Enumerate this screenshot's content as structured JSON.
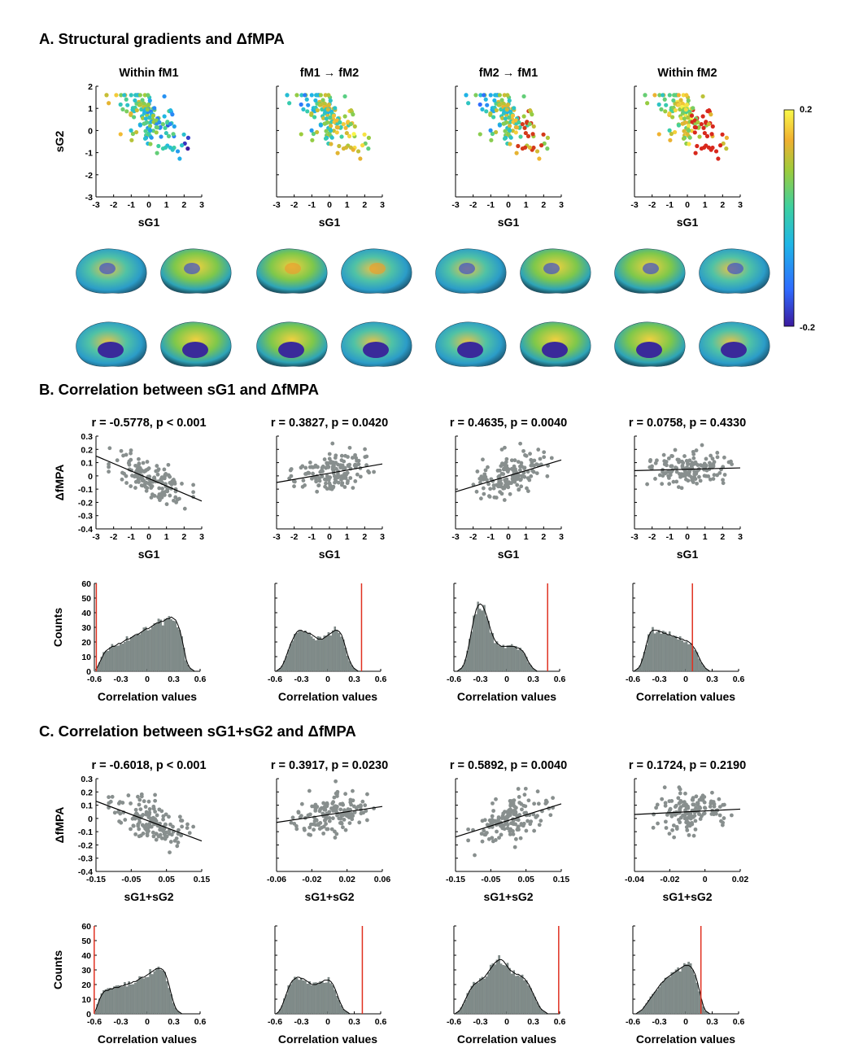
{
  "sections": {
    "A": "A. Structural gradients and ΔfMPA",
    "B": "B. Correlation between sG1 and ΔfMPA",
    "C": "C. Correlation between sG1+sG2 and ΔfMPA"
  },
  "colorbar": {
    "max": "0.2",
    "min": "-0.2",
    "colors": [
      "#3b1a9e",
      "#2f6bff",
      "#1fb6e6",
      "#3dd0a0",
      "#9ccc3c",
      "#f0b030",
      "#f9f94a"
    ]
  },
  "shared": {
    "xlabel_scatter_B": "sG1",
    "xlabel_scatter_C": "sG1+sG2",
    "ylabel_scatter": "ΔfMPA",
    "xlabel_hist": "Correlation values",
    "ylabel_hist": "Counts",
    "point_color": "#888f8e",
    "bar_color": "#808c8a",
    "null_line_color": "#e03020"
  },
  "chart_data": [
    {
      "id": "A1",
      "type": "scatter",
      "title": "Within fM1",
      "xlabel": "sG1",
      "ylabel": "sG2",
      "xlim": [
        -3,
        3
      ],
      "ylim": [
        -3,
        2
      ],
      "xticks": [
        "-3",
        "-2",
        "-1",
        "0",
        "1",
        "2",
        "3"
      ],
      "yticks": [
        "-3",
        "-2",
        "-1",
        "0",
        "1",
        "2"
      ],
      "color_mode": "mixed_blue_right"
    },
    {
      "id": "A2",
      "type": "scatter",
      "title": "fM1 → fM2",
      "xlabel": "sG1",
      "xlim": [
        -3,
        3
      ],
      "ylim": [
        -3,
        2
      ],
      "xticks": [
        "-3",
        "-2",
        "-1",
        "0",
        "1",
        "2",
        "3"
      ],
      "color_mode": "warm_right"
    },
    {
      "id": "A3",
      "type": "scatter",
      "title": "fM2 → fM1",
      "xlabel": "sG1",
      "xlim": [
        -3,
        3
      ],
      "ylim": [
        -3,
        2
      ],
      "xticks": [
        "-3",
        "-2",
        "-1",
        "0",
        "1",
        "2",
        "3"
      ],
      "color_mode": "warm_right_strong"
    },
    {
      "id": "A4",
      "type": "scatter",
      "title": "Within fM2",
      "xlabel": "sG1",
      "xlim": [
        -3,
        3
      ],
      "ylim": [
        -3,
        2
      ],
      "xticks": [
        "-3",
        "-2",
        "-1",
        "0",
        "1",
        "2",
        "3"
      ],
      "color_mode": "red_hot"
    },
    {
      "id": "B1",
      "type": "scatter",
      "title": "r = -0.5778, p < 0.001",
      "xlabel": "sG1",
      "ylabel": "ΔfMPA",
      "xlim": [
        -3,
        3
      ],
      "ylim": [
        -0.4,
        0.3
      ],
      "xticks": [
        "-3",
        "-2",
        "-1",
        "0",
        "1",
        "2",
        "3"
      ],
      "yticks": [
        "-0.4",
        "-0.3",
        "-0.2",
        "-0.1",
        "0",
        "0.1",
        "0.2",
        "0.3"
      ],
      "fit": [
        [
          -3,
          0.15
        ],
        [
          3,
          -0.19
        ]
      ]
    },
    {
      "id": "B2",
      "type": "scatter",
      "title": "r = 0.3827, p = 0.0420",
      "xlabel": "sG1",
      "xlim": [
        -3,
        3
      ],
      "ylim": [
        -0.4,
        0.3
      ],
      "xticks": [
        "-3",
        "-2",
        "-1",
        "0",
        "1",
        "2",
        "3"
      ],
      "fit": [
        [
          -3,
          -0.05
        ],
        [
          3,
          0.09
        ]
      ]
    },
    {
      "id": "B3",
      "type": "scatter",
      "title": "r = 0.4635, p = 0.0040",
      "xlabel": "sG1",
      "xlim": [
        -3,
        3
      ],
      "ylim": [
        -0.4,
        0.3
      ],
      "xticks": [
        "-3",
        "-2",
        "-1",
        "0",
        "1",
        "2",
        "3"
      ],
      "fit": [
        [
          -3,
          -0.12
        ],
        [
          3,
          0.12
        ]
      ]
    },
    {
      "id": "B4",
      "type": "scatter",
      "title": "r = 0.0758, p = 0.4330",
      "xlabel": "sG1",
      "xlim": [
        -3,
        3
      ],
      "ylim": [
        -0.4,
        0.3
      ],
      "xticks": [
        "-3",
        "-2",
        "-1",
        "0",
        "1",
        "2",
        "3"
      ],
      "fit": [
        [
          -3,
          0.04
        ],
        [
          3,
          0.06
        ]
      ]
    },
    {
      "id": "B5",
      "type": "bar",
      "xlabel": "Correlation values",
      "ylabel": "Counts",
      "xlim": [
        -0.6,
        0.6
      ],
      "ylim": [
        0,
        60
      ],
      "xticks": [
        "-0.6",
        "-0.3",
        "0",
        "0.3",
        "0.6"
      ],
      "yticks": [
        "0",
        "10",
        "20",
        "30",
        "40",
        "50",
        "60"
      ],
      "observed": -0.5778,
      "values": [
        1,
        3,
        6,
        9,
        12,
        14,
        15,
        16,
        17,
        17,
        18,
        19,
        19,
        20,
        21,
        22,
        22,
        23,
        24,
        25,
        25,
        26,
        27,
        28,
        29,
        29,
        30,
        31,
        32,
        33,
        33,
        34,
        34,
        35,
        36,
        36,
        37,
        36,
        35,
        32,
        28,
        22,
        15,
        8,
        4,
        2,
        1,
        0
      ]
    },
    {
      "id": "B6",
      "type": "bar",
      "xlabel": "Correlation values",
      "xlim": [
        -0.6,
        0.6
      ],
      "ylim": [
        0,
        60
      ],
      "xticks": [
        "-0.6",
        "-0.3",
        "0",
        "0.3",
        "0.6"
      ],
      "observed": 0.3827,
      "values": [
        0,
        1,
        2,
        4,
        7,
        11,
        15,
        19,
        22,
        25,
        27,
        28,
        28,
        27,
        27,
        26,
        26,
        25,
        24,
        23,
        22,
        22,
        22,
        23,
        24,
        25,
        26,
        27,
        28,
        28,
        27,
        25,
        21,
        16,
        11,
        7,
        4,
        2,
        1,
        0,
        0,
        0,
        0,
        0,
        0,
        0,
        0,
        0
      ]
    },
    {
      "id": "B7",
      "type": "bar",
      "xlabel": "Correlation values",
      "xlim": [
        -0.6,
        0.6
      ],
      "ylim": [
        0,
        60
      ],
      "xticks": [
        "-0.6",
        "-0.3",
        "0",
        "0.3",
        "0.6"
      ],
      "observed": 0.4635,
      "values": [
        0,
        0,
        1,
        2,
        4,
        8,
        14,
        21,
        29,
        36,
        42,
        45,
        46,
        45,
        42,
        38,
        33,
        28,
        24,
        21,
        19,
        18,
        17,
        17,
        17,
        17,
        17,
        17,
        17,
        16,
        16,
        15,
        14,
        12,
        9,
        6,
        4,
        2,
        1,
        0,
        0,
        0,
        0,
        0,
        0,
        0,
        0,
        0
      ]
    },
    {
      "id": "B8",
      "type": "bar",
      "xlabel": "Correlation values",
      "xlim": [
        -0.6,
        0.6
      ],
      "ylim": [
        0,
        60
      ],
      "xticks": [
        "-0.6",
        "-0.3",
        "0",
        "0.3",
        "0.6"
      ],
      "observed": 0.0758,
      "values": [
        0,
        1,
        2,
        4,
        8,
        13,
        19,
        24,
        27,
        28,
        28,
        28,
        27,
        27,
        26,
        26,
        25,
        25,
        24,
        24,
        23,
        23,
        22,
        22,
        21,
        21,
        20,
        19,
        17,
        15,
        12,
        9,
        6,
        4,
        2,
        1,
        0,
        0,
        0,
        0,
        0,
        0,
        0,
        0,
        0,
        0,
        0,
        0
      ]
    },
    {
      "id": "C1",
      "type": "scatter",
      "title": "r = -0.6018, p < 0.001",
      "xlabel": "sG1+sG2",
      "ylabel": "ΔfMPA",
      "xlim": [
        -0.15,
        0.15
      ],
      "ylim": [
        -0.4,
        0.3
      ],
      "xticks": [
        "-0.15",
        "-0.05",
        "0.05",
        "0.15"
      ],
      "yticks": [
        "-0.4",
        "-0.3",
        "-0.2",
        "-0.1",
        "0",
        "0.1",
        "0.2",
        "0.3"
      ],
      "fit": [
        [
          -0.15,
          0.13
        ],
        [
          0.15,
          -0.17
        ]
      ]
    },
    {
      "id": "C2",
      "type": "scatter",
      "title": "r = 0.3917, p = 0.0230",
      "xlabel": "sG1+sG2",
      "xlim": [
        -0.06,
        0.06
      ],
      "ylim": [
        -0.4,
        0.3
      ],
      "xticks": [
        "-0.06",
        "-0.02",
        "0.02",
        "0.06"
      ],
      "fit": [
        [
          -0.06,
          -0.03
        ],
        [
          0.06,
          0.09
        ]
      ]
    },
    {
      "id": "C3",
      "type": "scatter",
      "title": "r = 0.5892, p = 0.0040",
      "xlabel": "sG1+sG2",
      "xlim": [
        -0.15,
        0.15
      ],
      "ylim": [
        -0.4,
        0.3
      ],
      "xticks": [
        "-0.15",
        "-0.05",
        "0.05",
        "0.15"
      ],
      "fit": [
        [
          -0.15,
          -0.14
        ],
        [
          0.15,
          0.11
        ]
      ]
    },
    {
      "id": "C4",
      "type": "scatter",
      "title": "r = 0.1724, p = 0.2190",
      "xlabel": "sG1+sG2",
      "xlim": [
        -0.04,
        0.02
      ],
      "ylim": [
        -0.4,
        0.3
      ],
      "xticks": [
        "-0.04",
        "-0.02",
        "0",
        "0.02"
      ],
      "fit": [
        [
          -0.04,
          0.03
        ],
        [
          0.02,
          0.07
        ]
      ]
    },
    {
      "id": "C5",
      "type": "bar",
      "xlabel": "Correlation values",
      "ylabel": "Counts",
      "xlim": [
        -0.6,
        0.6
      ],
      "ylim": [
        0,
        60
      ],
      "xticks": [
        "-0.6",
        "-0.3",
        "0",
        "0.3",
        "0.6"
      ],
      "yticks": [
        "0",
        "10",
        "20",
        "30",
        "40",
        "50",
        "60"
      ],
      "observed": -0.6018,
      "values": [
        2,
        6,
        10,
        13,
        15,
        16,
        16,
        17,
        17,
        18,
        18,
        18,
        19,
        19,
        20,
        20,
        21,
        21,
        22,
        22,
        23,
        24,
        25,
        25,
        26,
        27,
        28,
        29,
        30,
        31,
        31,
        31,
        30,
        28,
        24,
        19,
        13,
        8,
        4,
        2,
        1,
        0,
        0,
        0,
        0,
        0,
        0,
        0
      ]
    },
    {
      "id": "C6",
      "type": "bar",
      "xlabel": "Correlation values",
      "xlim": [
        -0.6,
        0.6
      ],
      "ylim": [
        0,
        60
      ],
      "xticks": [
        "-0.6",
        "-0.3",
        "0",
        "0.3",
        "0.6"
      ],
      "observed": 0.3917,
      "values": [
        0,
        1,
        3,
        6,
        10,
        14,
        18,
        21,
        23,
        24,
        25,
        25,
        24,
        24,
        23,
        22,
        21,
        20,
        20,
        20,
        21,
        21,
        22,
        23,
        23,
        23,
        22,
        20,
        17,
        13,
        9,
        6,
        3,
        2,
        1,
        0,
        0,
        0,
        0,
        0,
        0,
        0,
        0,
        0,
        0,
        0,
        0,
        0
      ]
    },
    {
      "id": "C7",
      "type": "bar",
      "xlabel": "Correlation values",
      "xlim": [
        -0.6,
        0.6
      ],
      "ylim": [
        0,
        60
      ],
      "xticks": [
        "-0.6",
        "-0.3",
        "0",
        "0.3",
        "0.6"
      ],
      "observed": 0.5892,
      "values": [
        0,
        1,
        2,
        4,
        7,
        10,
        13,
        16,
        18,
        20,
        21,
        22,
        23,
        24,
        25,
        27,
        29,
        31,
        33,
        35,
        36,
        37,
        37,
        36,
        34,
        32,
        30,
        29,
        28,
        27,
        27,
        26,
        25,
        24,
        22,
        20,
        17,
        14,
        11,
        8,
        5,
        3,
        2,
        1,
        0,
        0,
        0,
        0
      ]
    },
    {
      "id": "C8",
      "type": "bar",
      "xlabel": "Correlation values",
      "xlim": [
        -0.6,
        0.6
      ],
      "ylim": [
        0,
        60
      ],
      "xticks": [
        "-0.6",
        "-0.3",
        "0",
        "0.3",
        "0.6"
      ],
      "observed": 0.1724,
      "values": [
        0,
        0,
        1,
        2,
        3,
        5,
        7,
        9,
        11,
        13,
        15,
        17,
        19,
        21,
        22,
        24,
        25,
        26,
        27,
        28,
        29,
        30,
        31,
        32,
        33,
        33,
        33,
        32,
        30,
        27,
        22,
        16,
        10,
        5,
        2,
        1,
        0,
        0,
        0,
        0,
        0,
        0,
        0,
        0,
        0,
        0,
        0,
        0
      ]
    }
  ]
}
